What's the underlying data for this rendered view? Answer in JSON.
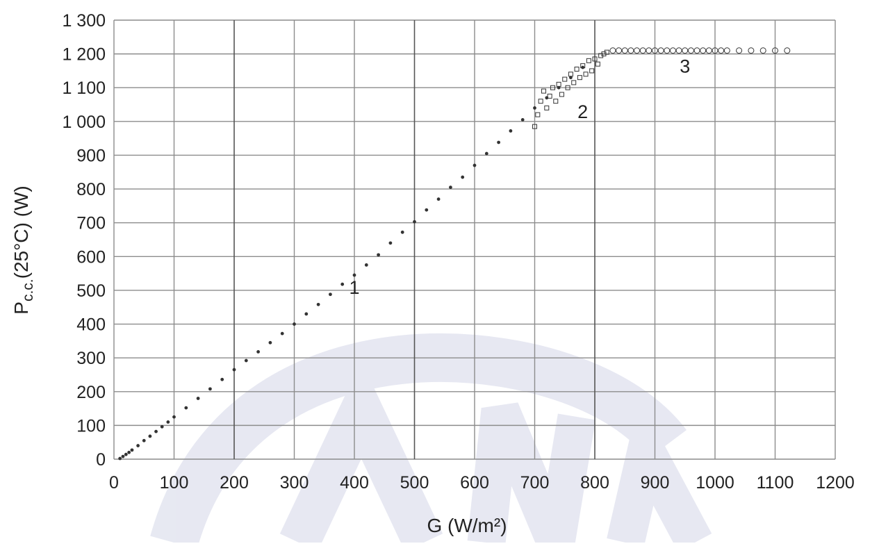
{
  "chart_data": {
    "type": "scatter",
    "title": "",
    "xlabel": "G (W/m²)",
    "ylabel_main": "P",
    "ylabel_sub": "c.c.",
    "ylabel_rest": "(25°C) (W)",
    "xlim": [
      0,
      1200
    ],
    "ylim": [
      0,
      1300
    ],
    "x_ticks": [
      0,
      100,
      200,
      300,
      400,
      500,
      600,
      700,
      800,
      900,
      1000,
      1100,
      1200
    ],
    "x_tick_labels": [
      "0",
      "100",
      "200",
      "300",
      "400",
      "500",
      "600",
      "700",
      "800",
      "900",
      "1000",
      "1100",
      "1200"
    ],
    "y_ticks": [
      0,
      100,
      200,
      300,
      400,
      500,
      600,
      700,
      800,
      900,
      1000,
      1100,
      1200,
      1300
    ],
    "y_tick_labels": [
      "0",
      "100",
      "200",
      "300",
      "400",
      "500",
      "600",
      "700",
      "800",
      "900",
      "1 000",
      "1 100",
      "1 200",
      "1 300"
    ],
    "grid": true,
    "annotations": [
      {
        "text": "1",
        "x": 400,
        "y": 490
      },
      {
        "text": "2",
        "x": 780,
        "y": 1010
      },
      {
        "text": "3",
        "x": 950,
        "y": 1145
      }
    ],
    "series": [
      {
        "marker": "dot",
        "description_region": "1",
        "x": [
          10,
          15,
          20,
          25,
          30,
          40,
          50,
          60,
          70,
          80,
          90,
          100,
          120,
          140,
          160,
          180,
          200,
          220,
          240,
          260,
          280,
          300,
          320,
          340,
          360,
          380,
          400,
          420,
          440,
          460,
          480,
          500,
          520,
          540,
          560,
          580,
          600,
          620,
          640,
          660,
          680,
          700,
          720,
          740,
          760,
          780
        ],
        "y": [
          2,
          8,
          14,
          20,
          27,
          40,
          55,
          68,
          82,
          96,
          110,
          125,
          152,
          180,
          208,
          236,
          265,
          292,
          318,
          345,
          372,
          400,
          430,
          458,
          488,
          518,
          545,
          575,
          605,
          640,
          672,
          703,
          738,
          770,
          805,
          835,
          870,
          905,
          938,
          972,
          1005,
          1040,
          1070,
          1100,
          1130,
          1160
        ]
      },
      {
        "marker": "square",
        "description_region": "2",
        "x": [
          700,
          705,
          710,
          715,
          720,
          725,
          730,
          735,
          740,
          745,
          750,
          755,
          760,
          765,
          770,
          775,
          780,
          785,
          790,
          795,
          800,
          805,
          810,
          815,
          820
        ],
        "y": [
          985,
          1020,
          1060,
          1090,
          1040,
          1075,
          1100,
          1060,
          1110,
          1080,
          1125,
          1100,
          1140,
          1115,
          1155,
          1130,
          1165,
          1140,
          1180,
          1150,
          1185,
          1170,
          1195,
          1200,
          1205
        ]
      },
      {
        "marker": "circle",
        "description_region": "3",
        "x": [
          830,
          840,
          850,
          860,
          870,
          880,
          890,
          900,
          910,
          920,
          930,
          940,
          950,
          960,
          970,
          980,
          990,
          1000,
          1010,
          1020,
          1040,
          1060,
          1080,
          1100,
          1120
        ],
        "y": [
          1210,
          1210,
          1210,
          1210,
          1210,
          1210,
          1210,
          1210,
          1210,
          1210,
          1210,
          1210,
          1210,
          1210,
          1210,
          1210,
          1210,
          1210,
          1210,
          1210,
          1210,
          1210,
          1210,
          1210,
          1210
        ]
      }
    ],
    "colors": {
      "grid": "#8c8c8c",
      "grid_major": "#555555",
      "marker": "#333333",
      "watermark": "#dfe1ee"
    }
  }
}
